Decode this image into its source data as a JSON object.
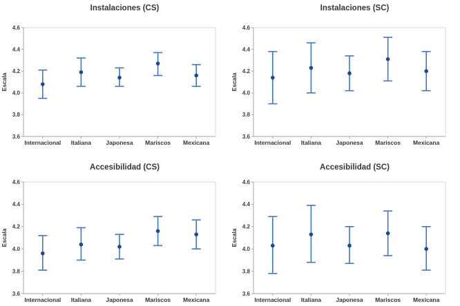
{
  "style": {
    "background": "#ffffff",
    "interval_color": "#3e76c3",
    "marker_color": "#1a4891",
    "axis_line_color": "#a6a6a6",
    "plot_border_color": "#d9d9d9",
    "text_color": "#3b3b3b"
  },
  "chart_data": [
    {
      "type": "interval",
      "title": "Instalaciones (CS)",
      "xlabel": "",
      "ylabel": "Escala",
      "ylim": [
        3.6,
        4.6
      ],
      "ytick_step": 0.2,
      "ytick_labels": [
        "3.6",
        "3.8",
        "4.0",
        "4.2",
        "4.4",
        "4.6"
      ],
      "grid": false,
      "legend": "none",
      "categories": [
        "Internacional",
        "Italiana",
        "Japonesa",
        "Mariscos",
        "Mexicana"
      ],
      "means": [
        4.08,
        4.19,
        4.14,
        4.27,
        4.16
      ],
      "ci_low": [
        3.95,
        4.06,
        4.06,
        4.16,
        4.06
      ],
      "ci_high": [
        4.21,
        4.32,
        4.23,
        4.37,
        4.26
      ]
    },
    {
      "type": "interval",
      "title": "Instalaciones (SC)",
      "xlabel": "",
      "ylabel": "Escala",
      "ylim": [
        3.6,
        4.6
      ],
      "ytick_step": 0.2,
      "ytick_labels": [
        "3.6",
        "3.8",
        "4.0",
        "4.2",
        "4.4",
        "4.6"
      ],
      "grid": false,
      "legend": "none",
      "categories": [
        "Internacional",
        "Italiana",
        "Japonesa",
        "Mariscos",
        "Mexicana"
      ],
      "means": [
        4.14,
        4.23,
        4.18,
        4.31,
        4.2
      ],
      "ci_low": [
        3.9,
        4.0,
        4.02,
        4.11,
        4.02
      ],
      "ci_high": [
        4.38,
        4.46,
        4.34,
        4.51,
        4.38
      ]
    },
    {
      "type": "interval",
      "title": "Accesibilidad (CS)",
      "xlabel": "",
      "ylabel": "Escala",
      "ylim": [
        3.6,
        4.6
      ],
      "ytick_step": 0.2,
      "ytick_labels": [
        "3.6",
        "3.8",
        "4.0",
        "4.2",
        "4.4",
        "4.6"
      ],
      "grid": false,
      "legend": "none",
      "categories": [
        "Internacional",
        "Italiana",
        "Japonesa",
        "Mariscos",
        "Mexicana"
      ],
      "means": [
        3.96,
        4.04,
        4.02,
        4.16,
        4.13
      ],
      "ci_low": [
        3.81,
        3.9,
        3.91,
        4.03,
        4.0
      ],
      "ci_high": [
        4.12,
        4.19,
        4.13,
        4.29,
        4.26
      ]
    },
    {
      "type": "interval",
      "title": "Accesibilidad (SC)",
      "xlabel": "",
      "ylabel": "Escala",
      "ylim": [
        3.6,
        4.6
      ],
      "ytick_step": 0.2,
      "ytick_labels": [
        "3.6",
        "3.8",
        "4.0",
        "4.2",
        "4.4",
        "4.6"
      ],
      "grid": false,
      "legend": "none",
      "categories": [
        "Internacional",
        "Italiana",
        "Japonesa",
        "Mariscos",
        "Mexicana"
      ],
      "means": [
        4.03,
        4.13,
        4.03,
        4.14,
        4.0
      ],
      "ci_low": [
        3.78,
        3.88,
        3.87,
        3.94,
        3.81
      ],
      "ci_high": [
        4.29,
        4.39,
        4.2,
        4.34,
        4.2
      ]
    }
  ]
}
